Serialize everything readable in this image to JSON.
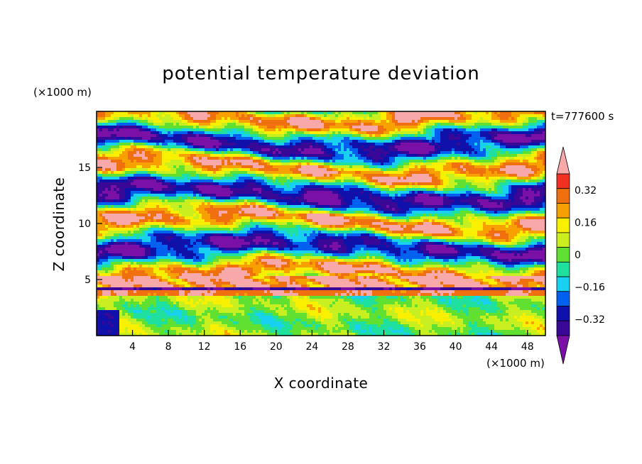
{
  "chart_data": {
    "type": "heatmap",
    "title": "potential temperature deviation",
    "xlabel": "X coordinate",
    "ylabel": "Z coordinate",
    "x_unit": "(×1000 m)",
    "y_unit": "(×1000 m)",
    "time_label": "t=777600 s",
    "xlim": [
      0,
      50
    ],
    "ylim": [
      0,
      20
    ],
    "x_ticks": [
      4,
      8,
      12,
      16,
      20,
      24,
      28,
      32,
      36,
      40,
      44,
      48
    ],
    "y_ticks": [
      5,
      10,
      15
    ],
    "colorbar": {
      "levels": [
        -0.4,
        -0.32,
        -0.24,
        -0.16,
        -0.08,
        0,
        0.08,
        0.16,
        0.24,
        0.32,
        0.4
      ],
      "tick_labels": [
        "0.32",
        "0.16",
        "0",
        "−0.16",
        "−0.32"
      ],
      "tick_values": [
        0.32,
        0.16,
        0,
        -0.16,
        -0.32
      ],
      "colors": [
        "#7a10a6",
        "#3a0896",
        "#1010aa",
        "#0060f0",
        "#18d0f0",
        "#20e0a0",
        "#60e030",
        "#c8f020",
        "#f8f000",
        "#f8a000",
        "#f07010",
        "#f03020",
        "#f8a8a8"
      ]
    }
  }
}
